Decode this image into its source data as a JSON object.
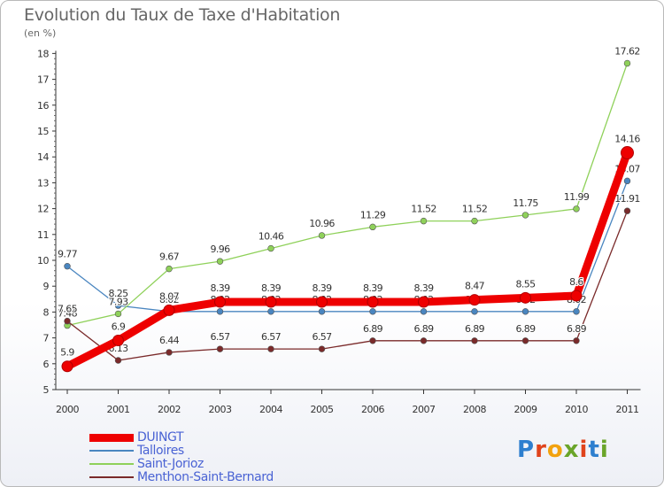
{
  "title": "Evolution du Taux de Taxe d'Habitation",
  "subtitle": "(en %)",
  "brand": "Proxiti",
  "brand_colors": [
    "#2e7fcf",
    "#e0431c",
    "#f2a20f",
    "#6aa52a",
    "#e0431c",
    "#2e7fcf",
    "#6aa52a"
  ],
  "chart_data": {
    "type": "line",
    "x": [
      "2000",
      "2001",
      "2002",
      "2003",
      "2004",
      "2005",
      "2006",
      "2007",
      "2008",
      "2009",
      "2010",
      "2011"
    ],
    "ylim": [
      5,
      18
    ],
    "yticks": [
      5,
      6,
      7,
      8,
      9,
      10,
      11,
      12,
      13,
      14,
      15,
      16,
      17,
      18
    ],
    "grid": false,
    "legend_position": "bottom-left",
    "series": [
      {
        "name": "Talloires",
        "color": "#4a86c0",
        "values": [
          9.77,
          8.25,
          8.02,
          8.02,
          8.02,
          8.02,
          8.02,
          8.02,
          8.02,
          8.02,
          8.02,
          13.07
        ],
        "labels": [
          "9.77",
          "8.25",
          "8.02",
          "8.02",
          "8.02",
          "8.02",
          "8.02",
          "8.02",
          "8.02",
          "8.02",
          "8.02",
          "13.07"
        ]
      },
      {
        "name": "Saint-Jorioz",
        "color": "#8fd15a",
        "values": [
          7.48,
          7.93,
          9.67,
          9.96,
          10.46,
          10.96,
          11.29,
          11.52,
          11.52,
          11.75,
          11.99,
          17.62
        ],
        "labels": [
          "7.48",
          "7.93",
          "9.67",
          "9.96",
          "10.46",
          "10.96",
          "11.29",
          "11.52",
          "11.52",
          "11.75",
          "11.99",
          "17.62"
        ]
      },
      {
        "name": "Menthon-Saint-Bernard",
        "color": "#7a2a2a",
        "values": [
          7.65,
          6.13,
          6.44,
          6.57,
          6.57,
          6.57,
          6.89,
          6.89,
          6.89,
          6.89,
          6.89,
          11.91
        ],
        "labels": [
          "7.65",
          "6.13",
          "6.44",
          "6.57",
          "6.57",
          "6.57",
          "6.89",
          "6.89",
          "6.89",
          "6.89",
          "6.89",
          "11.91"
        ]
      },
      {
        "name": "DUINGT",
        "color": "#ee0000",
        "bold": true,
        "values": [
          5.9,
          6.9,
          8.07,
          8.39,
          8.39,
          8.39,
          8.39,
          8.39,
          8.47,
          8.55,
          8.63,
          14.16
        ],
        "labels": [
          "5.9",
          "6.9",
          "8.07",
          "8.39",
          "8.39",
          "8.39",
          "8.39",
          "8.39",
          "8.47",
          "8.55",
          "8.6",
          "14.16"
        ]
      }
    ],
    "legend_order": [
      "DUINGT",
      "Talloires",
      "Saint-Jorioz",
      "Menthon-Saint-Bernard"
    ]
  }
}
